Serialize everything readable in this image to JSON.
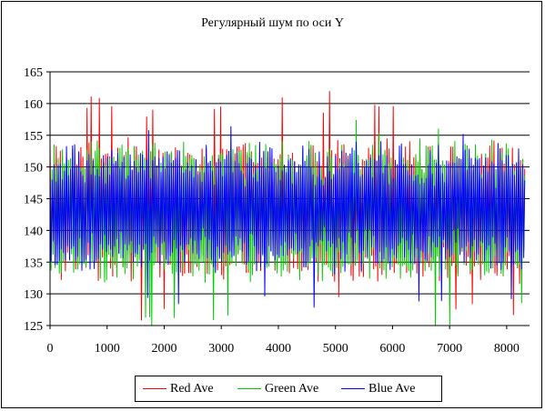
{
  "chart_data": {
    "type": "line",
    "title": "Регулярный шум по оси Y",
    "xlabel": "",
    "ylabel": "",
    "xlim": [
      0,
      8400
    ],
    "ylim": [
      125,
      165
    ],
    "xticks": [
      0,
      1000,
      2000,
      3000,
      4000,
      5000,
      6000,
      7000,
      8000
    ],
    "yticks": [
      125,
      130,
      135,
      140,
      145,
      150,
      155,
      160,
      165
    ],
    "grid": "horizontal",
    "legend_position": "bottom",
    "series": [
      {
        "name": "Red Ave",
        "color": "#ff0000",
        "center": 143,
        "amplitude": 9,
        "peak_max": 161,
        "peak_min": 126,
        "period": 55
      },
      {
        "name": "Green Ave",
        "color": "#00cc00",
        "center": 143,
        "amplitude": 9,
        "peak_max": 157,
        "peak_min": 125,
        "period": 55
      },
      {
        "name": "Blue Ave",
        "color": "#0000ff",
        "center": 143,
        "amplitude": 8,
        "peak_max": 155,
        "peak_min": 128,
        "period": 55
      }
    ],
    "x_end": 8330
  }
}
